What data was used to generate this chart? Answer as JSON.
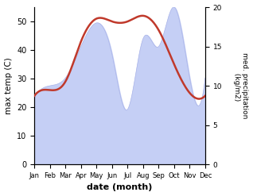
{
  "months": [
    "Jan",
    "Feb",
    "Mar",
    "Apr",
    "May",
    "Jun",
    "Jul",
    "Aug",
    "Sep",
    "Oct",
    "Nov",
    "Dec"
  ],
  "temperature": [
    24,
    26,
    29,
    43,
    51,
    50,
    50,
    52,
    47,
    35,
    25,
    24
  ],
  "precipitation": [
    8.5,
    10,
    11,
    15,
    18,
    14,
    7,
    16,
    15,
    20,
    11,
    11
  ],
  "temp_color": "#c0392b",
  "precip_fill_color": "#c5cff5",
  "precip_edge_color": "#aab4e8",
  "xlabel": "date (month)",
  "ylabel_left": "max temp (C)",
  "ylabel_right": "med. precipitation\n (kg/m2)",
  "ylim_left": [
    0,
    55
  ],
  "ylim_right": [
    0,
    20
  ],
  "yticks_left": [
    0,
    10,
    20,
    30,
    40,
    50
  ],
  "yticks_right": [
    0,
    5,
    10,
    15,
    20
  ]
}
